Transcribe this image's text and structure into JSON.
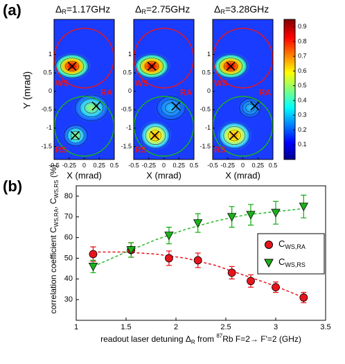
{
  "chart_data": [
    {
      "type": "heatmap",
      "label": "(a)",
      "panels": [
        {
          "symbol": "Δ",
          "sub": "R",
          "title": "=1.17GHz"
        },
        {
          "symbol": "Δ",
          "sub": "R",
          "title": "=2.75GHz"
        },
        {
          "symbol": "Δ",
          "sub": "R",
          "title": "=3.28GHz"
        }
      ],
      "x_label": "X (mrad)",
      "y_label": "Y (mrad)",
      "xlim": [
        -0.5,
        0.5
      ],
      "ylim": [
        -1.85,
        1.95
      ],
      "xticks": [
        -0.5,
        -0.25,
        0,
        0.25,
        0.5
      ],
      "yticks": [
        -1.5,
        -1,
        -0.5,
        0,
        0.5,
        1
      ],
      "regions": [
        "WS",
        "RA",
        "RS"
      ],
      "colorbar": {
        "lim": [
          0,
          0.95
        ],
        "ticks": [
          0.1,
          0.2,
          0.3,
          0.4,
          0.5,
          0.6,
          0.7,
          0.8,
          0.9
        ]
      }
    },
    {
      "type": "scatter",
      "label": "(b)",
      "x_label": {
        "a": "readout laser detuning Δ",
        "sub": "R",
        "b": " from ",
        "sup": "87",
        "c": "Rb F=2→ F'=2 (GHz)"
      },
      "y_label": {
        "a": "correlation coefficient  C",
        "sub1": "WS,RA",
        "b": ", C",
        "sub2": "WS,RS",
        "c": " (%)"
      },
      "x": [
        1.17,
        1.55,
        1.93,
        2.22,
        2.56,
        2.75,
        3.0,
        3.28
      ],
      "series": [
        {
          "name": "C",
          "subscript": "WS,RA",
          "color": "#e8141c",
          "marker": "circle",
          "values": [
            52,
            54,
            50,
            49,
            43,
            39,
            36,
            31
          ],
          "errors": [
            3.5,
            3.5,
            3.5,
            3.5,
            3,
            3,
            2.5,
            2.5
          ],
          "fit": {
            "color": "#e8141c",
            "x": [
              1.17,
              1.5,
              1.8,
              2.1,
              2.4,
              2.7,
              3.0,
              3.28
            ],
            "values": [
              53,
              53,
              52,
              50,
              46.5,
              41.5,
              36.5,
              31
            ]
          }
        },
        {
          "name": "C",
          "subscript": "WS,RS",
          "color": "#1ab21a",
          "marker": "triangle",
          "values": [
            46,
            54,
            61,
            67,
            70,
            71,
            72,
            75
          ],
          "errors": [
            3,
            3.5,
            4,
            4.5,
            5,
            5,
            5.5,
            5.5
          ],
          "fit": {
            "color": "#2ab82a",
            "x": [
              1.17,
              1.5,
              1.8,
              2.1,
              2.4,
              2.7,
              3.0,
              3.28
            ],
            "values": [
              46,
              53,
              59,
              64,
              68,
              71,
              72.5,
              74
            ]
          }
        }
      ],
      "xlim": [
        1,
        3.5
      ],
      "ylim": [
        20,
        85
      ],
      "xticks": [
        1,
        1.5,
        2,
        2.5,
        3,
        3.5
      ],
      "yticks": [
        30,
        40,
        50,
        60,
        70,
        80
      ],
      "legend": "right"
    }
  ]
}
